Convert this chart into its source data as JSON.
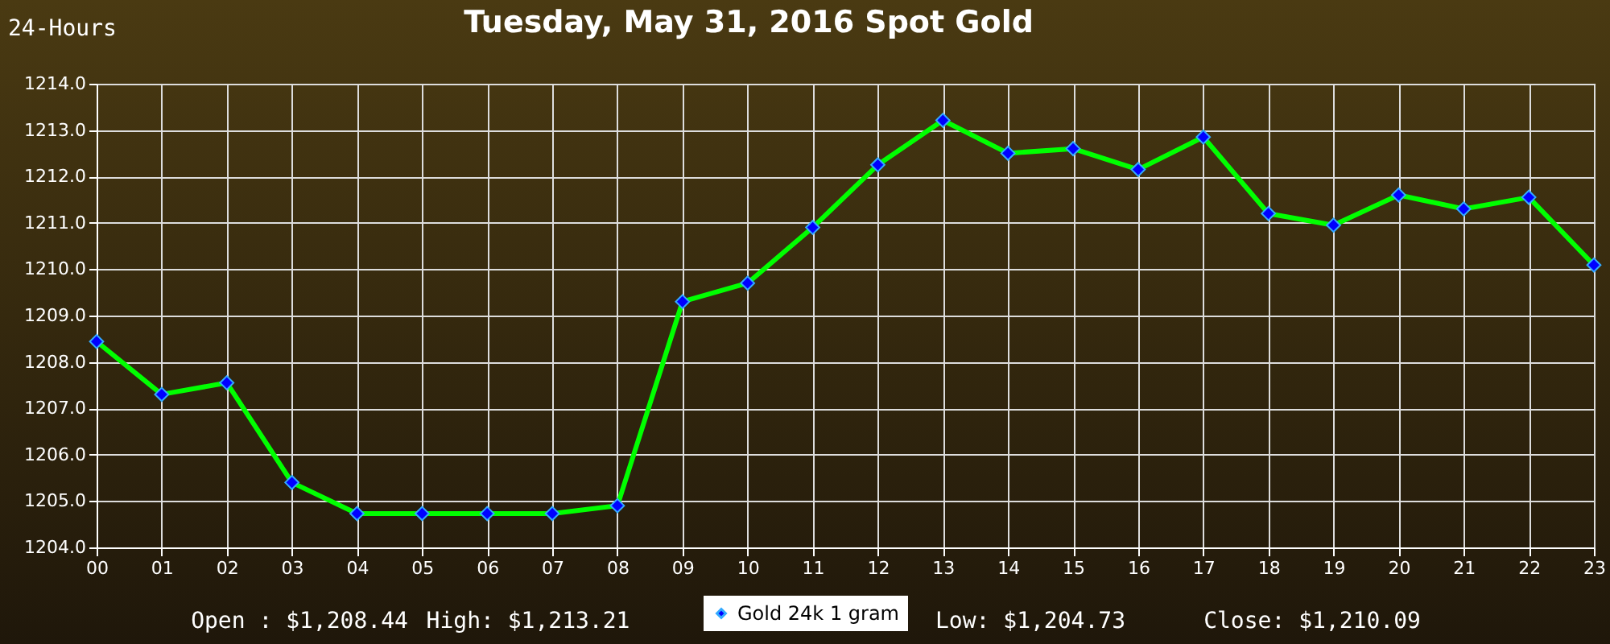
{
  "chart_data": {
    "type": "line",
    "title": "Tuesday, May 31, 2016 Spot Gold",
    "annotations": [
      "24-Hours",
      "Open : $1,208.44",
      "High: $1,213.21",
      "Low: $1,204.73",
      "Close: $1,210.09"
    ],
    "categories": [
      "00",
      "01",
      "02",
      "03",
      "04",
      "05",
      "06",
      "07",
      "08",
      "09",
      "10",
      "11",
      "12",
      "13",
      "14",
      "15",
      "16",
      "17",
      "18",
      "19",
      "20",
      "21",
      "22",
      "23"
    ],
    "series": [
      {
        "name": "Gold 24k 1 gram",
        "color": "#00ff00",
        "values": [
          1208.44,
          1207.3,
          1207.55,
          1205.4,
          1204.73,
          1204.73,
          1204.73,
          1204.73,
          1204.9,
          1209.3,
          1209.7,
          1210.9,
          1212.25,
          1213.21,
          1212.5,
          1212.6,
          1212.15,
          1212.85,
          1211.2,
          1210.95,
          1211.6,
          1211.3,
          1211.55,
          1210.09
        ]
      }
    ],
    "ylim": [
      1204,
      1214
    ],
    "yticks": [
      {
        "value": 1204,
        "label": "1204.0"
      },
      {
        "value": 1205,
        "label": "1205.0"
      },
      {
        "value": 1206,
        "label": "1206.0"
      },
      {
        "value": 1207,
        "label": "1207.0"
      },
      {
        "value": 1208,
        "label": "1208.0"
      },
      {
        "value": 1209,
        "label": "1209.0"
      },
      {
        "value": 1210,
        "label": "1210.0"
      },
      {
        "value": 1211,
        "label": "1211.0"
      },
      {
        "value": 1212,
        "label": "1212.0"
      },
      {
        "value": 1213,
        "label": "1213.0"
      },
      {
        "value": 1214,
        "label": "1214.0"
      }
    ],
    "grid": true,
    "legend": "bottom",
    "marker": "diamond",
    "line_style": "solid"
  }
}
